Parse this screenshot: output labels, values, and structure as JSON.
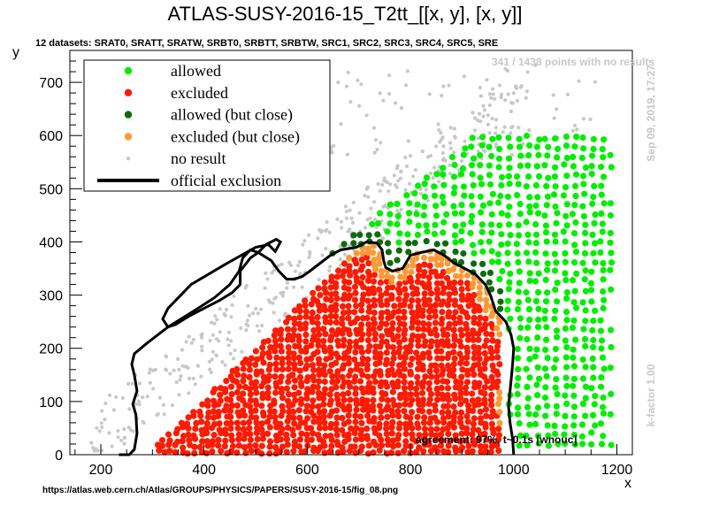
{
  "chart_data": {
    "type": "scatter",
    "title": "ATLAS-SUSY-2016-15_T2tt_[[x, y], [x, y]]",
    "subtitle": "12 datasets: SRAT0, SRATT, SRATW, SRBT0, SRBTT, SRBTW, SRC1, SRC2, SRC3, SRC4, SRC5, SRE",
    "xlabel": "x",
    "ylabel": "y",
    "xlim": [
      140,
      1230
    ],
    "ylim": [
      0,
      760
    ],
    "xticks": [
      200,
      400,
      600,
      800,
      1000,
      1200
    ],
    "yticks": [
      0,
      100,
      200,
      300,
      400,
      500,
      600,
      700
    ],
    "legend": {
      "placement": "top-left",
      "entries": [
        {
          "label": "allowed",
          "color": "#00ee00",
          "marker": "dot"
        },
        {
          "label": "excluded",
          "color": "#ff1a00",
          "marker": "dot"
        },
        {
          "label": "allowed (but close)",
          "color": "#0d6b0d",
          "marker": "dot"
        },
        {
          "label": "excluded (but close)",
          "color": "#ff9933",
          "marker": "dot"
        },
        {
          "label": "no result",
          "color": "#c8c8c8",
          "marker": "small-dot"
        },
        {
          "label": "official exclusion",
          "color": "#000000",
          "marker": "line"
        }
      ]
    },
    "annotations": {
      "no_results": "341 / 1438 points with no results",
      "date": "Sep 09, 2019, 17:27",
      "kfactor": "k-factor 1.00",
      "agreement": "agreement: 97%, t~0.1s [wnouc]",
      "source": "https://atlas.web.cern.ch/Atlas/GROUPS/PHYSICS/PAPERS/SUSY-2016-15/fig_08.png"
    },
    "official_exclusion": [
      [
        235,
        0
      ],
      [
        255,
        0
      ],
      [
        265,
        10
      ],
      [
        270,
        40
      ],
      [
        268,
        75
      ],
      [
        262,
        95
      ],
      [
        270,
        120
      ],
      [
        265,
        150
      ],
      [
        260,
        170
      ],
      [
        265,
        190
      ],
      [
        290,
        210
      ],
      [
        330,
        240
      ],
      [
        380,
        270
      ],
      [
        420,
        295
      ],
      [
        450,
        320
      ],
      [
        468,
        345
      ],
      [
        475,
        370
      ],
      [
        490,
        385
      ],
      [
        505,
        380
      ],
      [
        530,
        365
      ],
      [
        545,
        345
      ],
      [
        560,
        330
      ],
      [
        575,
        330
      ],
      [
        590,
        335
      ],
      [
        605,
        345
      ],
      [
        625,
        360
      ],
      [
        645,
        375
      ],
      [
        665,
        385
      ],
      [
        695,
        390
      ],
      [
        715,
        400
      ],
      [
        735,
        398
      ],
      [
        745,
        385
      ],
      [
        748,
        365
      ],
      [
        752,
        352
      ],
      [
        765,
        345
      ],
      [
        785,
        350
      ],
      [
        800,
        375
      ],
      [
        820,
        380
      ],
      [
        845,
        385
      ],
      [
        865,
        375
      ],
      [
        885,
        360
      ],
      [
        905,
        350
      ],
      [
        925,
        340
      ],
      [
        945,
        320
      ],
      [
        955,
        300
      ],
      [
        965,
        270
      ],
      [
        985,
        250
      ],
      [
        995,
        225
      ],
      [
        1000,
        200
      ],
      [
        998,
        170
      ],
      [
        995,
        140
      ],
      [
        992,
        110
      ],
      [
        990,
        90
      ],
      [
        993,
        60
      ],
      [
        998,
        30
      ],
      [
        1000,
        0
      ]
    ],
    "excluded_region": {
      "x_range": [
        305,
        960
      ],
      "note": "dense red grid of excluded points under the official exclusion contour"
    },
    "allowed_region": {
      "x_range": [
        560,
        1185
      ],
      "note": "green grid of allowed points above/right of the contour"
    }
  },
  "colors": {
    "allowed": "#00ee00",
    "excluded": "#ff1a00",
    "allowed_close": "#0d6b0d",
    "excluded_close": "#ff9933",
    "no_result": "#c8c8c8",
    "axis": "#000000"
  }
}
